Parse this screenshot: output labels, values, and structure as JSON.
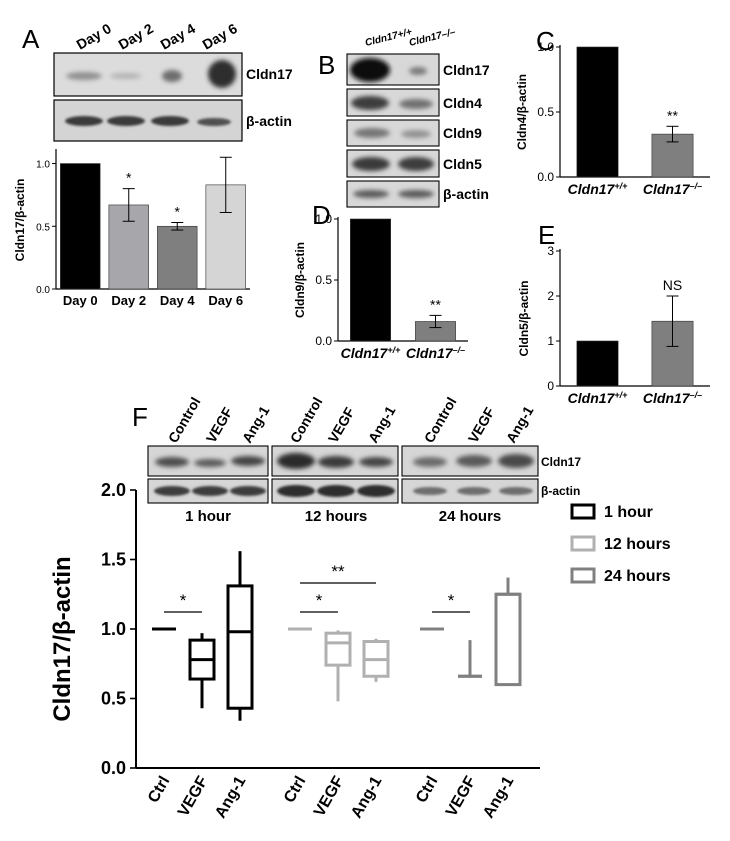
{
  "panel_labels": {
    "A": "A",
    "B": "B",
    "C": "C",
    "D": "D",
    "E": "E",
    "F": "F"
  },
  "blot_A": {
    "lanes": [
      "Day 0",
      "Day 2",
      "Day 4",
      "Day 6"
    ],
    "proteins": [
      "Cldn17",
      "β-actin"
    ]
  },
  "blot_B": {
    "lanes": [
      "Cldn17+/+",
      "Cldn17–/–"
    ],
    "proteins": [
      "Cldn17",
      "Cldn4",
      "Cldn9",
      "Cldn5",
      "β-actin"
    ]
  },
  "blot_F": {
    "groups": [
      {
        "lanes": [
          "Control",
          "VEGF",
          "Ang-1"
        ],
        "time": "1 hour"
      },
      {
        "lanes": [
          "Control",
          "VEGF",
          "Ang-1"
        ],
        "time": "12 hours"
      },
      {
        "lanes": [
          "Control",
          "VEGF",
          "Ang-1"
        ],
        "time": "24 hours"
      }
    ],
    "proteins": [
      "Cldn17",
      "β-actin"
    ]
  },
  "chart_data": [
    {
      "panel": "A",
      "type": "bar",
      "categories": [
        "Day 0",
        "Day 2",
        "Day 4",
        "Day 6"
      ],
      "values": [
        1.0,
        0.67,
        0.5,
        0.83
      ],
      "errors": [
        0,
        0.13,
        0.03,
        0.22
      ],
      "significance": [
        "",
        "*",
        "*",
        ""
      ],
      "colors": [
        "#000000",
        "#a6a6ab",
        "#7f7f7f",
        "#d5d5d5"
      ],
      "ylabel": "Cldn17/β-actin",
      "ylim": [
        0,
        1.1
      ],
      "yticks": [
        "0.0",
        "0.5",
        "1.0"
      ]
    },
    {
      "panel": "C",
      "type": "bar",
      "categories": [
        "Cldn17+/+",
        "Cldn17–/–"
      ],
      "values": [
        1.0,
        0.33
      ],
      "errors": [
        0,
        0.06
      ],
      "significance": [
        "",
        "**"
      ],
      "colors": [
        "#000000",
        "#7f7f7f"
      ],
      "ylabel": "Cldn4/β-actin",
      "ylim": [
        0,
        1.0
      ],
      "yticks": [
        "0.0",
        "0.5",
        "1.0"
      ]
    },
    {
      "panel": "D",
      "type": "bar",
      "categories": [
        "Cldn17+/+",
        "Cldn17–/–"
      ],
      "values": [
        1.0,
        0.16
      ],
      "errors": [
        0,
        0.05
      ],
      "significance": [
        "",
        "**"
      ],
      "colors": [
        "#000000",
        "#7f7f7f"
      ],
      "ylabel": "Cldn9/β-actin",
      "ylim": [
        0,
        1.0
      ],
      "yticks": [
        "0.0",
        "0.5",
        "1.0"
      ]
    },
    {
      "panel": "E",
      "type": "bar",
      "categories": [
        "Cldn17+/+",
        "Cldn17–/–"
      ],
      "values": [
        1.0,
        1.44
      ],
      "errors": [
        0,
        0.56
      ],
      "significance": [
        "",
        "NS"
      ],
      "colors": [
        "#000000",
        "#7f7f7f"
      ],
      "ylabel": "Cldn5/β-actin",
      "ylim": [
        0,
        3
      ],
      "yticks": [
        "0",
        "1",
        "2",
        "3"
      ]
    },
    {
      "panel": "F",
      "type": "box",
      "ylabel": "Cldn17/β-actin",
      "ylim": [
        0,
        2.0
      ],
      "yticks": [
        "0.0",
        "0.5",
        "1.0",
        "1.5",
        "2.0"
      ],
      "legend_position": "right",
      "series": [
        {
          "name": "1 hour",
          "color": "#000000",
          "boxes": [
            {
              "category": "Ctrl",
              "min": 1.0,
              "q1": 1.0,
              "median": 1.0,
              "q3": 1.0,
              "max": 1.0
            },
            {
              "category": "VEGF",
              "min": 0.43,
              "q1": 0.64,
              "median": 0.78,
              "q3": 0.92,
              "max": 0.97
            },
            {
              "category": "Ang-1",
              "min": 0.34,
              "q1": 0.43,
              "median": 0.98,
              "q3": 1.31,
              "max": 1.56
            }
          ]
        },
        {
          "name": "12 hours",
          "color": "#b0b0b0",
          "boxes": [
            {
              "category": "Ctrl",
              "min": 1.0,
              "q1": 1.0,
              "median": 1.0,
              "q3": 1.0,
              "max": 1.0
            },
            {
              "category": "VEGF",
              "min": 0.48,
              "q1": 0.74,
              "median": 0.9,
              "q3": 0.97,
              "max": 0.99
            },
            {
              "category": "Ang-1",
              "min": 0.62,
              "q1": 0.66,
              "median": 0.78,
              "q3": 0.91,
              "max": 0.93
            }
          ]
        },
        {
          "name": "24 hours",
          "color": "#808080",
          "boxes": [
            {
              "category": "Ctrl",
              "min": 1.0,
              "q1": 1.0,
              "median": 1.0,
              "q3": 1.0,
              "max": 1.0
            },
            {
              "category": "VEGF",
              "min": 0.65,
              "q1": 0.66,
              "median": 0.66,
              "q3": 0.66,
              "max": 0.92
            },
            {
              "category": "Ang-1",
              "min": 0.6,
              "q1": 0.6,
              "median": 1.25,
              "q3": 1.25,
              "max": 1.37
            }
          ]
        }
      ],
      "significance": [
        {
          "series": "1 hour",
          "label": "*"
        },
        {
          "series": "12 hours",
          "label": "*"
        },
        {
          "series": "12 hours",
          "label": "**"
        },
        {
          "series": "24 hours",
          "label": "*"
        }
      ]
    }
  ]
}
